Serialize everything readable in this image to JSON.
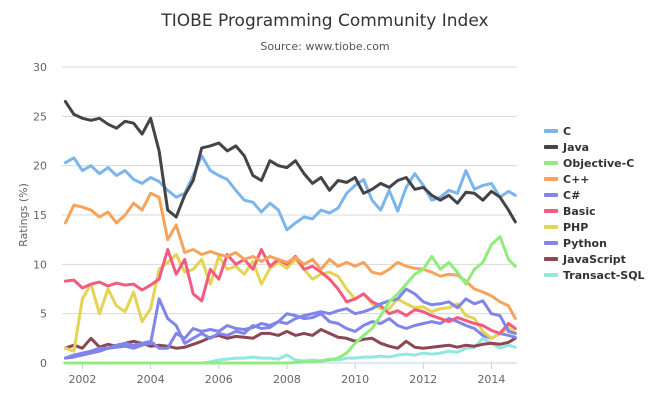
{
  "chart_data": {
    "type": "line",
    "title": "TIOBE Programming Community Index",
    "subtitle": "Source: www.tiobe.com",
    "xlabel": "",
    "ylabel": "Ratings (%)",
    "xlim": [
      2001.4,
      2014.75
    ],
    "ylim": [
      0,
      30
    ],
    "x_ticks": [
      2002,
      2004,
      2006,
      2008,
      2010,
      2012,
      2014
    ],
    "x_tick_labels": [
      "2002",
      "2004",
      "2006",
      "2008",
      "2010",
      "2012",
      "2014"
    ],
    "y_ticks": [
      0,
      5,
      10,
      15,
      20,
      25,
      30
    ],
    "y_tick_labels": [
      "0",
      "5",
      "10",
      "15",
      "20",
      "25",
      "30"
    ],
    "grid": true,
    "legend_position": "right",
    "x": [
      2001.5,
      2001.75,
      2002,
      2002.25,
      2002.5,
      2002.75,
      2003,
      2003.25,
      2003.5,
      2003.75,
      2004,
      2004.25,
      2004.5,
      2004.75,
      2005,
      2005.25,
      2005.5,
      2005.75,
      2006,
      2006.25,
      2006.5,
      2006.75,
      2007,
      2007.25,
      2007.5,
      2007.75,
      2008,
      2008.25,
      2008.5,
      2008.75,
      2009,
      2009.25,
      2009.5,
      2009.75,
      2010,
      2010.25,
      2010.5,
      2010.75,
      2011,
      2011.25,
      2011.5,
      2011.75,
      2012,
      2012.25,
      2012.5,
      2012.75,
      2013,
      2013.25,
      2013.5,
      2013.75,
      2014,
      2014.25,
      2014.5,
      2014.7
    ],
    "series": [
      {
        "name": "C",
        "color": "#7cb5ec",
        "values": [
          20.3,
          20.8,
          19.5,
          20.0,
          19.2,
          19.8,
          19.0,
          19.5,
          18.6,
          18.2,
          18.8,
          18.4,
          17.5,
          16.8,
          17.2,
          19.0,
          21.0,
          19.5,
          19.0,
          18.6,
          17.5,
          16.5,
          16.3,
          15.3,
          16.2,
          15.5,
          13.5,
          14.2,
          14.8,
          14.6,
          15.5,
          15.2,
          15.7,
          17.2,
          18.0,
          18.6,
          16.5,
          15.5,
          17.5,
          15.4,
          17.8,
          19.2,
          18.0,
          16.5,
          16.8,
          17.5,
          17.2,
          19.5,
          17.6,
          18.0,
          18.2,
          16.8,
          17.4,
          17.0
        ]
      },
      {
        "name": "Java",
        "color": "#434348",
        "values": [
          26.5,
          25.2,
          24.8,
          24.6,
          24.8,
          24.2,
          23.8,
          24.5,
          24.3,
          23.2,
          24.8,
          21.5,
          15.5,
          14.8,
          17.0,
          18.5,
          21.8,
          22.0,
          22.3,
          21.5,
          22.0,
          21.0,
          19.0,
          18.5,
          20.5,
          20.0,
          19.8,
          20.5,
          19.2,
          18.2,
          18.8,
          17.5,
          18.5,
          18.3,
          18.8,
          17.2,
          17.6,
          18.2,
          17.8,
          18.5,
          18.8,
          17.6,
          17.8,
          17.0,
          16.5,
          17.0,
          16.2,
          17.3,
          17.2,
          16.5,
          17.4,
          16.8,
          15.5,
          14.3
        ]
      },
      {
        "name": "Objective-C",
        "color": "#90ed7d",
        "values": [
          0.0,
          0.0,
          0.0,
          0.0,
          0.0,
          0.0,
          0.0,
          0.0,
          0.0,
          0.0,
          0.0,
          0.0,
          0.0,
          0.0,
          0.0,
          0.0,
          0.0,
          0.0,
          0.0,
          0.0,
          0.0,
          0.0,
          0.0,
          0.0,
          0.0,
          0.0,
          0.0,
          0.05,
          0.1,
          0.1,
          0.2,
          0.3,
          0.5,
          1.0,
          2.0,
          2.8,
          3.5,
          4.8,
          6.2,
          7.0,
          8.0,
          9.0,
          9.5,
          10.8,
          9.5,
          10.2,
          9.2,
          8.0,
          9.5,
          10.2,
          12.0,
          12.8,
          10.5,
          9.8
        ]
      },
      {
        "name": "C++",
        "color": "#f7a35c",
        "values": [
          14.2,
          16.0,
          15.8,
          15.5,
          14.8,
          15.3,
          14.2,
          15.0,
          16.2,
          15.5,
          17.2,
          16.8,
          12.5,
          14.0,
          11.2,
          11.5,
          11.0,
          11.3,
          11.0,
          10.8,
          11.2,
          10.5,
          10.8,
          10.3,
          10.8,
          10.5,
          10.2,
          10.7,
          10.0,
          10.5,
          9.5,
          10.5,
          9.8,
          10.2,
          9.8,
          10.2,
          9.2,
          9.0,
          9.5,
          10.2,
          9.8,
          9.6,
          9.5,
          9.2,
          8.8,
          9.0,
          8.9,
          8.3,
          7.5,
          7.2,
          6.8,
          6.2,
          5.8,
          4.5
        ]
      },
      {
        "name": "C#",
        "color": "#8085e9",
        "values": [
          0.5,
          0.8,
          1.0,
          1.2,
          1.5,
          1.5,
          1.8,
          2.0,
          1.8,
          2.0,
          2.2,
          1.5,
          1.5,
          3.0,
          2.5,
          3.5,
          3.2,
          3.4,
          3.2,
          3.8,
          3.5,
          3.4,
          3.6,
          4.0,
          3.8,
          4.2,
          4.0,
          4.5,
          4.8,
          5.0,
          5.2,
          5.0,
          5.3,
          5.5,
          5.0,
          5.2,
          5.5,
          6.0,
          6.3,
          6.5,
          7.5,
          7.0,
          6.2,
          5.9,
          6.0,
          6.2,
          5.6,
          6.5,
          6.0,
          6.3,
          5.0,
          4.8,
          3.2,
          3.0
        ]
      },
      {
        "name": "Basic",
        "color": "#f15c80",
        "values": [
          8.3,
          8.4,
          7.6,
          8.0,
          8.2,
          7.8,
          8.1,
          7.9,
          8.0,
          7.4,
          7.9,
          8.5,
          11.5,
          9.0,
          10.5,
          7.0,
          6.3,
          9.5,
          8.5,
          11.0,
          10.0,
          10.5,
          9.5,
          11.5,
          9.8,
          10.5,
          10.0,
          10.8,
          9.5,
          9.8,
          9.2,
          8.5,
          7.5,
          6.2,
          6.5,
          7.0,
          6.2,
          5.8,
          5.0,
          5.3,
          4.8,
          5.4,
          5.2,
          4.8,
          4.5,
          4.2,
          4.6,
          4.3,
          4.0,
          3.8,
          3.3,
          3.0,
          4.0,
          3.5
        ]
      },
      {
        "name": "PHP",
        "color": "#e4d354",
        "values": [
          1.5,
          1.2,
          6.5,
          8.0,
          5.0,
          7.5,
          5.8,
          5.2,
          7.2,
          4.2,
          5.5,
          9.5,
          10.2,
          11.0,
          9.2,
          9.5,
          10.5,
          8.0,
          10.8,
          9.5,
          9.8,
          9.0,
          10.3,
          8.0,
          9.6,
          10.2,
          9.6,
          10.5,
          9.5,
          8.5,
          9.0,
          9.2,
          8.8,
          7.5,
          6.5,
          7.0,
          6.0,
          5.5,
          5.5,
          6.5,
          6.0,
          5.6,
          5.7,
          5.2,
          5.5,
          5.6,
          6.0,
          4.8,
          4.5,
          3.2,
          2.5,
          3.0,
          3.6,
          3.0
        ]
      },
      {
        "name": "Python",
        "color": "#7798bf",
        "display_color": "#8085e9",
        "values": [
          0.5,
          0.6,
          0.8,
          1.0,
          1.2,
          1.5,
          1.6,
          1.7,
          1.5,
          1.8,
          2.0,
          6.5,
          4.5,
          3.8,
          2.0,
          2.5,
          3.0,
          2.5,
          3.0,
          2.8,
          3.2,
          3.0,
          3.8,
          3.5,
          3.6,
          4.2,
          5.0,
          4.8,
          4.5,
          4.6,
          5.0,
          4.2,
          4.0,
          3.5,
          3.2,
          3.8,
          4.2,
          4.0,
          4.5,
          3.8,
          3.5,
          3.8,
          4.0,
          4.2,
          4.0,
          4.5,
          4.2,
          3.8,
          3.5,
          2.8,
          2.5,
          3.0,
          2.8,
          2.6
        ]
      },
      {
        "name": "JavaScript",
        "color": "#8d4653",
        "values": [
          1.5,
          1.8,
          1.5,
          2.5,
          1.6,
          1.9,
          1.7,
          2.0,
          2.2,
          2.0,
          1.7,
          1.8,
          1.7,
          1.5,
          1.6,
          1.9,
          2.2,
          2.6,
          2.8,
          2.5,
          2.7,
          2.6,
          2.5,
          3.0,
          3.0,
          2.8,
          3.2,
          2.8,
          3.0,
          2.8,
          3.4,
          3.0,
          2.6,
          2.5,
          2.2,
          2.4,
          2.5,
          2.0,
          1.7,
          1.5,
          2.2,
          1.6,
          1.5,
          1.6,
          1.7,
          1.8,
          1.6,
          1.8,
          1.7,
          1.9,
          2.0,
          1.9,
          2.1,
          2.5
        ]
      },
      {
        "name": "Transact-SQL",
        "color": "#91e8e1",
        "values": [
          0.0,
          0.0,
          0.0,
          0.0,
          0.0,
          0.0,
          0.0,
          0.0,
          0.0,
          0.0,
          0.0,
          0.0,
          0.0,
          0.0,
          0.0,
          0.0,
          0.0,
          0.1,
          0.3,
          0.4,
          0.5,
          0.5,
          0.6,
          0.5,
          0.5,
          0.4,
          0.8,
          0.3,
          0.2,
          0.3,
          0.2,
          0.4,
          0.3,
          0.5,
          0.5,
          0.6,
          0.6,
          0.7,
          0.6,
          0.8,
          0.9,
          0.8,
          1.0,
          0.9,
          1.0,
          1.2,
          1.1,
          1.5,
          1.6,
          2.5,
          2.0,
          1.5,
          1.8,
          1.6
        ]
      }
    ]
  }
}
